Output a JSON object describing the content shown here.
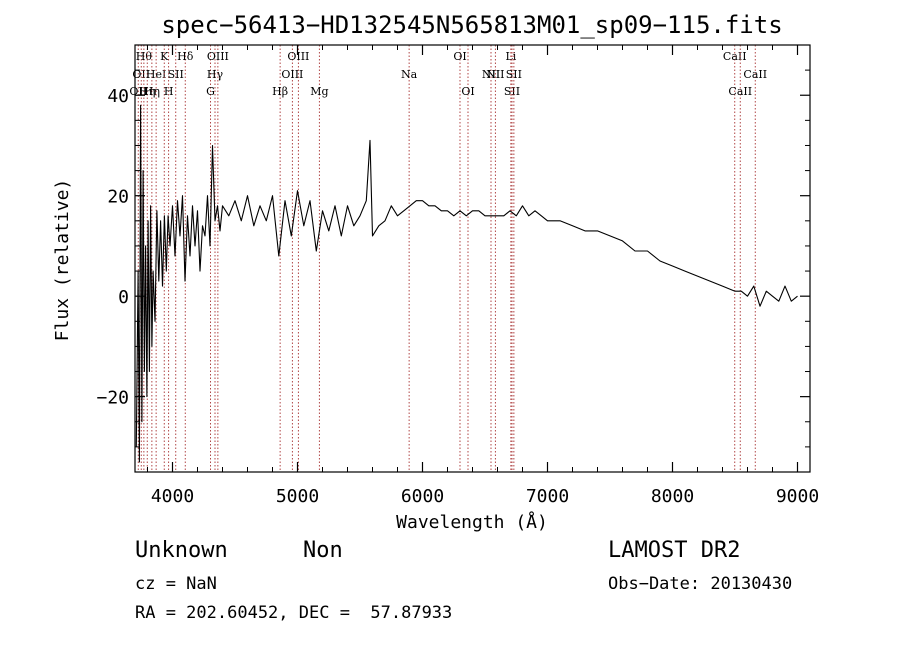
{
  "chart_data": {
    "type": "line",
    "title": "spec−56413−HD132545N565813M01_sp09−115.fits",
    "xlabel": "Wavelength (Å)",
    "ylabel": "Flux (relative)",
    "xlim": [
      3700,
      9100
    ],
    "ylim": [
      -35,
      50
    ],
    "x_ticks": [
      4000,
      5000,
      6000,
      7000,
      8000,
      9000
    ],
    "y_ticks": [
      -20,
      0,
      20,
      40
    ],
    "x_tick_labels": [
      "4000",
      "5000",
      "6000",
      "7000",
      "8000",
      "9000"
    ],
    "y_tick_labels": [
      "−20",
      "0",
      "20",
      "40"
    ],
    "series": [
      {
        "name": "flux",
        "x": [
          3710,
          3725,
          3735,
          3745,
          3755,
          3765,
          3775,
          3785,
          3795,
          3805,
          3815,
          3825,
          3835,
          3845,
          3860,
          3875,
          3890,
          3905,
          3920,
          3935,
          3950,
          3965,
          3980,
          4000,
          4020,
          4040,
          4060,
          4080,
          4100,
          4120,
          4140,
          4160,
          4180,
          4200,
          4220,
          4240,
          4260,
          4280,
          4300,
          4320,
          4340,
          4360,
          4380,
          4400,
          4450,
          4500,
          4550,
          4600,
          4650,
          4700,
          4750,
          4800,
          4850,
          4900,
          4950,
          5000,
          5050,
          5100,
          5150,
          5200,
          5250,
          5300,
          5350,
          5400,
          5450,
          5500,
          5550,
          5580,
          5600,
          5650,
          5700,
          5750,
          5800,
          5850,
          5900,
          5950,
          6000,
          6050,
          6100,
          6150,
          6200,
          6250,
          6300,
          6350,
          6400,
          6450,
          6500,
          6550,
          6600,
          6650,
          6700,
          6750,
          6800,
          6850,
          6900,
          6950,
          7000,
          7100,
          7200,
          7300,
          7400,
          7500,
          7600,
          7700,
          7800,
          7900,
          8000,
          8100,
          8200,
          8300,
          8400,
          8500,
          8550,
          8600,
          8650,
          8700,
          8750,
          8800,
          8850,
          8900,
          8950,
          9000
        ],
        "values": [
          -30,
          5,
          -33,
          38,
          -25,
          25,
          -15,
          10,
          -20,
          15,
          -15,
          18,
          -10,
          5,
          -5,
          17,
          3,
          15,
          2,
          16,
          5,
          16,
          10,
          18,
          8,
          19,
          12,
          20,
          3,
          16,
          8,
          18,
          10,
          17,
          5,
          14,
          12,
          20,
          10,
          30,
          15,
          18,
          13,
          18,
          16,
          19,
          15,
          20,
          14,
          18,
          15,
          20,
          8,
          19,
          12,
          21,
          14,
          19,
          9,
          17,
          13,
          18,
          12,
          18,
          14,
          16,
          19,
          31,
          12,
          14,
          15,
          18,
          16,
          17,
          18,
          19,
          19,
          18,
          18,
          17,
          17,
          16,
          17,
          16,
          17,
          17,
          16,
          16,
          16,
          16,
          17,
          16,
          18,
          16,
          17,
          16,
          15,
          15,
          14,
          13,
          13,
          12,
          11,
          9,
          9,
          7,
          6,
          5,
          4,
          3,
          2,
          1,
          1,
          0,
          2,
          -2,
          1,
          0,
          -1,
          2,
          -1,
          0
        ]
      }
    ],
    "line_markers": [
      {
        "w": 3726,
        "name": "OII",
        "row": 3
      },
      {
        "w": 3750,
        "name": "OII",
        "row": 2
      },
      {
        "w": 3771,
        "name": "Hθ",
        "row": 1
      },
      {
        "w": 3798,
        "name": "Hη",
        "row": 3
      },
      {
        "w": 3835,
        "name": "Hη",
        "row": 3
      },
      {
        "w": 3869,
        "name": "HeI",
        "row": 2
      },
      {
        "w": 3934,
        "name": "K",
        "row": 1
      },
      {
        "w": 3969,
        "name": "H",
        "row": 3
      },
      {
        "w": 4026,
        "name": "SII",
        "row": 2
      },
      {
        "w": 4102,
        "name": "Hδ",
        "row": 1
      },
      {
        "w": 4304,
        "name": "G",
        "row": 3
      },
      {
        "w": 4340,
        "name": "Hγ",
        "row": 2
      },
      {
        "w": 4363,
        "name": "OIII",
        "row": 1
      },
      {
        "w": 4861,
        "name": "Hβ",
        "row": 3
      },
      {
        "w": 4959,
        "name": "OIII",
        "row": 2
      },
      {
        "w": 5007,
        "name": "OIII",
        "row": 1
      },
      {
        "w": 5175,
        "name": "Mg",
        "row": 3
      },
      {
        "w": 5893,
        "name": "Na",
        "row": 2
      },
      {
        "w": 6300,
        "name": "OI",
        "row": 1
      },
      {
        "w": 6364,
        "name": "OI",
        "row": 3
      },
      {
        "w": 6548,
        "name": "NII",
        "row": 2
      },
      {
        "w": 6583,
        "name": "NII",
        "row": 2
      },
      {
        "w": 6707,
        "name": "Li",
        "row": 1
      },
      {
        "w": 6716,
        "name": "SII",
        "row": 3
      },
      {
        "w": 6731,
        "name": "SII",
        "row": 2
      },
      {
        "w": 8498,
        "name": "CaII",
        "row": 1
      },
      {
        "w": 8542,
        "name": "CaII",
        "row": 3
      },
      {
        "w": 8662,
        "name": "CaII",
        "row": 2
      }
    ]
  },
  "info": {
    "object_class": "Unknown",
    "subclass": "Non",
    "survey": "LAMOST DR2",
    "redshift": "cz = NaN",
    "obs_date": "Obs−Date: 20130430",
    "coordinates": "RA = 202.60452, DEC =  57.87933"
  }
}
